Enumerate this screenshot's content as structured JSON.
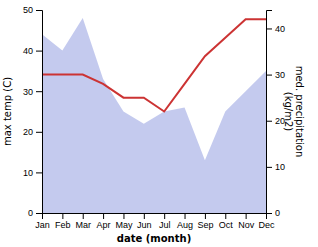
{
  "chart_data": {
    "type": "area",
    "xlabel": "date (month)",
    "ylabel": "max temp (C)",
    "y2label": "med. precipitation\n(kg/m2)",
    "categories": [
      "Jan",
      "Feb",
      "Mar",
      "Apr",
      "May",
      "Jun",
      "Jul",
      "Aug",
      "Sep",
      "Oct",
      "Nov",
      "Dec"
    ],
    "series": [
      {
        "type": "area",
        "color": "#b0b8e8",
        "values": [
          44,
          40,
          48,
          33,
          25,
          22,
          25,
          26,
          13,
          25,
          30,
          35
        ],
        "min_values": [
          0,
          0,
          0,
          0,
          0,
          0,
          0,
          0,
          0,
          0,
          0,
          0
        ]
      },
      {
        "type": "line",
        "color": "#cc3333",
        "axis": "y2",
        "values": [
          30,
          30,
          30,
          28,
          25,
          25,
          22,
          28,
          34,
          38,
          42,
          42
        ]
      }
    ],
    "ylim": [
      0,
      50
    ],
    "yticks": [
      0,
      10,
      20,
      30,
      40,
      50
    ],
    "y2lim": [
      0,
      44
    ],
    "y2ticks": [
      0,
      10,
      20,
      30,
      40
    ]
  }
}
